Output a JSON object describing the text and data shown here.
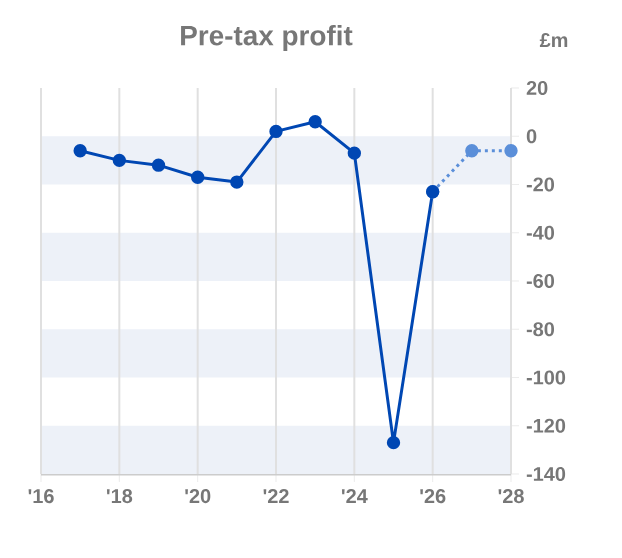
{
  "chart_data": {
    "type": "line",
    "title": "Pre-tax profit",
    "ylabel": "£m",
    "xlim": [
      2016,
      2028
    ],
    "xticks": [
      {
        "value": 2016,
        "label": "'16"
      },
      {
        "value": 2018,
        "label": "'18"
      },
      {
        "value": 2020,
        "label": "'20"
      },
      {
        "value": 2022,
        "label": "'22"
      },
      {
        "value": 2024,
        "label": "'24"
      },
      {
        "value": 2026,
        "label": "'26"
      },
      {
        "value": 2028,
        "label": "'28"
      }
    ],
    "ylim": [
      -140,
      20
    ],
    "yticks": [
      20,
      0,
      -20,
      -40,
      -60,
      -80,
      -100,
      -120,
      -140
    ],
    "grid": "x",
    "marker": "circle",
    "bands": [
      {
        "axis": "y",
        "from": -20,
        "to": 0,
        "color": "#edf1f8"
      },
      {
        "axis": "y",
        "from": -60,
        "to": -40,
        "color": "#edf1f8"
      },
      {
        "axis": "y",
        "from": -100,
        "to": -80,
        "color": "#edf1f8"
      },
      {
        "axis": "y",
        "from": -140,
        "to": -120,
        "color": "#edf1f8"
      }
    ],
    "series": [
      {
        "color": "#0047b3",
        "line_style": "solid",
        "x": [
          2017,
          2018,
          2019,
          2020,
          2021,
          2022,
          2023,
          2024,
          2025,
          2026
        ],
        "values": [
          -6,
          -10,
          -12,
          -17,
          -19,
          2,
          6,
          -7,
          -127,
          -23
        ]
      },
      {
        "color": "#5b8fd9",
        "line_style": "dotted",
        "x": [
          2026,
          2027,
          2028
        ],
        "values": [
          -23,
          -6,
          -6
        ]
      }
    ]
  }
}
